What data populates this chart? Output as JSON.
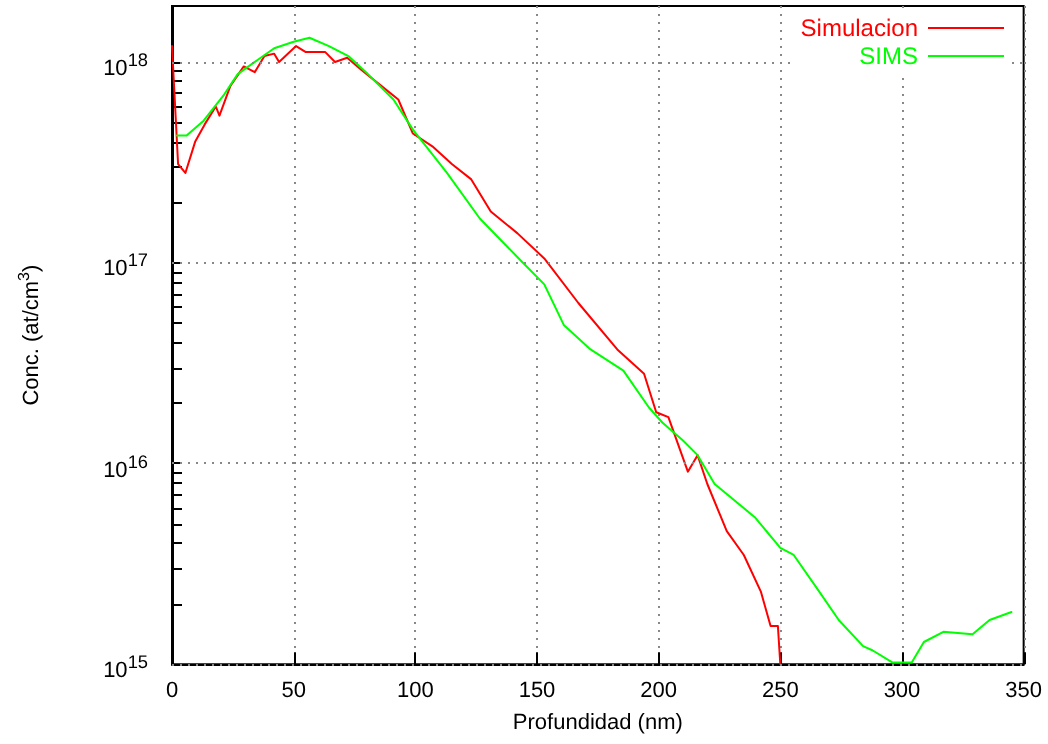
{
  "chart_data": {
    "type": "line",
    "xlabel": "Profundidad (nm)",
    "ylabel": "Conc. (at/cm$^{3}$)",
    "xlim": [
      0,
      350
    ],
    "xticks": [
      0,
      50,
      100,
      150,
      200,
      250,
      300,
      350
    ],
    "ylim": [
      1000000000000000.0,
      1.9e+18
    ],
    "log": true,
    "grid": true,
    "legend": "top right",
    "marker": "none",
    "line_style": "solid",
    "yticks": [
      {
        "value": 1000000000000000.0,
        "label": "10$^{15}$"
      },
      {
        "value": 2000000000000000.0,
        "label": null
      },
      {
        "value": 3000000000000000.0,
        "label": null
      },
      {
        "value": 4000000000000000.0,
        "label": null
      },
      {
        "value": 5000000000000000.0,
        "label": null
      },
      {
        "value": 6000000000000000.0,
        "label": null
      },
      {
        "value": 7000000000000000.0,
        "label": null
      },
      {
        "value": 8000000000000000.0,
        "label": null
      },
      {
        "value": 9000000000000000.0,
        "label": null
      },
      {
        "value": 1e+16,
        "label": "10$^{16}$"
      },
      {
        "value": 2e+16,
        "label": null
      },
      {
        "value": 3e+16,
        "label": null
      },
      {
        "value": 4e+16,
        "label": null
      },
      {
        "value": 5e+16,
        "label": null
      },
      {
        "value": 6e+16,
        "label": null
      },
      {
        "value": 7e+16,
        "label": null
      },
      {
        "value": 8e+16,
        "label": null
      },
      {
        "value": 9e+16,
        "label": null
      },
      {
        "value": 1e+17,
        "label": "10$^{17}$"
      },
      {
        "value": 2e+17,
        "label": null
      },
      {
        "value": 3e+17,
        "label": null
      },
      {
        "value": 4e+17,
        "label": null
      },
      {
        "value": 5e+17,
        "label": null
      },
      {
        "value": 6e+17,
        "label": null
      },
      {
        "value": 7e+17,
        "label": null
      },
      {
        "value": 8e+17,
        "label": null
      },
      {
        "value": 9e+17,
        "label": null
      },
      {
        "value": 1e+18,
        "label": "10$^{18}$"
      }
    ],
    "series": [
      {
        "name": "Simulacion",
        "color": "#ff0000",
        "x": [
          0,
          2.5,
          5.5,
          9.5,
          13.5,
          18,
          19.5,
          24,
          29.5,
          34,
          38,
          42,
          44,
          51,
          55,
          63,
          67,
          72,
          78,
          86,
          93,
          99,
          107,
          115,
          123,
          131,
          142,
          153,
          167,
          183,
          194,
          199,
          204,
          212,
          216,
          220,
          228,
          235,
          242,
          246,
          249,
          250
        ],
        "values": [
          1.2e+18,
          3.1e+17,
          2.8e+17,
          4e+17,
          4.9e+17,
          6e+17,
          5.4e+17,
          7.6e+17,
          9.5e+17,
          8.9e+17,
          1.07e+18,
          1.1e+18,
          1e+18,
          1.2e+18,
          1.12e+18,
          1.12e+18,
          1e+18,
          1.05e+18,
          9.1e+17,
          7.6e+17,
          6.5e+17,
          4.4e+17,
          3.8e+17,
          3.1e+17,
          2.6e+17,
          1.8e+17,
          1.4e+17,
          1.05e+17,
          6.3e+16,
          3.7e+16,
          2.8e+16,
          1.8e+16,
          1.7e+16,
          9100000000000000.0,
          1.1e+16,
          7900000000000000.0,
          4600000000000000.0,
          3500000000000000.0,
          2300000000000000.0,
          1550000000000000.0,
          1550000000000000.0,
          1000000000000000.0
        ]
      },
      {
        "name": "SIMS",
        "color": "#00ff00",
        "x": [
          2,
          6,
          13,
          21.5,
          27,
          35,
          42,
          50,
          56.5,
          64.5,
          72.5,
          80.5,
          91,
          99,
          113,
          126.5,
          142.5,
          153,
          161,
          172,
          185.5,
          196,
          201.5,
          210,
          216,
          223,
          239.5,
          250,
          255.5,
          266,
          274,
          284,
          288,
          296,
          304,
          309,
          317,
          329,
          336,
          345
        ],
        "values": [
          4.3e+17,
          4.3e+17,
          5.1e+17,
          6.9e+17,
          8.7e+17,
          1.02e+18,
          1.17e+18,
          1.26e+18,
          1.32e+18,
          1.2e+18,
          1.07e+18,
          8.7e+17,
          6.5e+17,
          4.6e+17,
          2.8e+17,
          1.66e+17,
          1.05e+17,
          7.8e+16,
          4.9e+16,
          3.7e+16,
          2.9e+16,
          1.9e+16,
          1.6e+16,
          1.3e+16,
          1.1e+16,
          7900000000000000.0,
          5400000000000000.0,
          3800000000000000.0,
          3500000000000000.0,
          2300000000000000.0,
          1660000000000000.0,
          1230000000000000.0,
          1170000000000000.0,
          1020000000000000.0,
          1020000000000000.0,
          1290000000000000.0,
          1450000000000000.0,
          1410000000000000.0,
          1660000000000000.0,
          1820000000000000.0
        ]
      }
    ]
  }
}
